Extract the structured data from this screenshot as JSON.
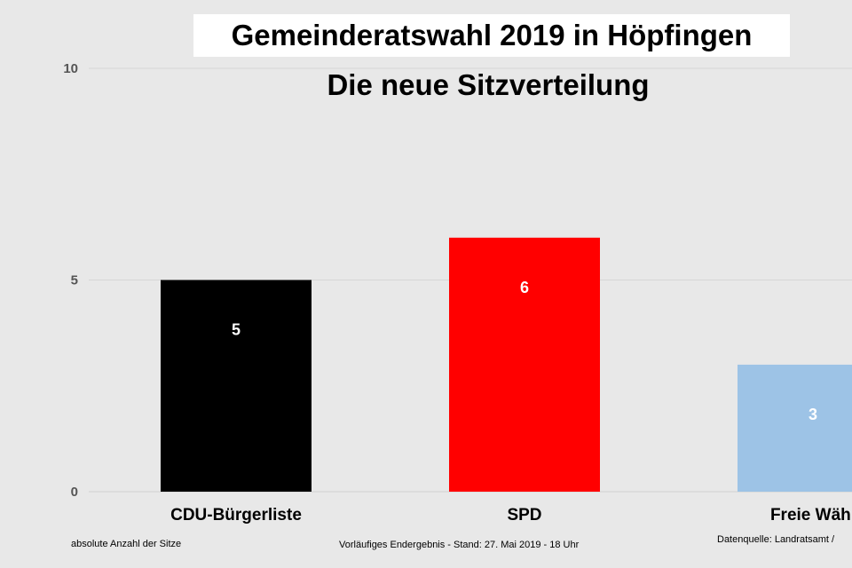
{
  "chart_data": {
    "type": "bar",
    "title": "Gemeinderatswahl 2019 in Höpfingen",
    "subtitle": "Die neue Sitzverteilung",
    "categories": [
      "CDU-Bürgerliste",
      "SPD",
      "Freie Wähl"
    ],
    "values": [
      5,
      6,
      3
    ],
    "data_labels": [
      "5",
      "6",
      "3"
    ],
    "colors": [
      "#000000",
      "#ff0000",
      "#9dc3e6"
    ],
    "label_colors": [
      "#ffffff",
      "#ffffff",
      "#ffffff"
    ],
    "ylim": [
      0,
      10
    ],
    "yticks": [
      "0",
      "5",
      "10"
    ],
    "ytick_values": [
      0,
      5,
      10
    ],
    "grid": true,
    "legend": "none"
  },
  "footnotes": {
    "left": "absolute Anzahl der Sitze",
    "center": "Vorläufiges Endergebnis - Stand: 27. Mai 2019 - 18 Uhr",
    "right": "Datenquelle: Landratsamt /"
  }
}
